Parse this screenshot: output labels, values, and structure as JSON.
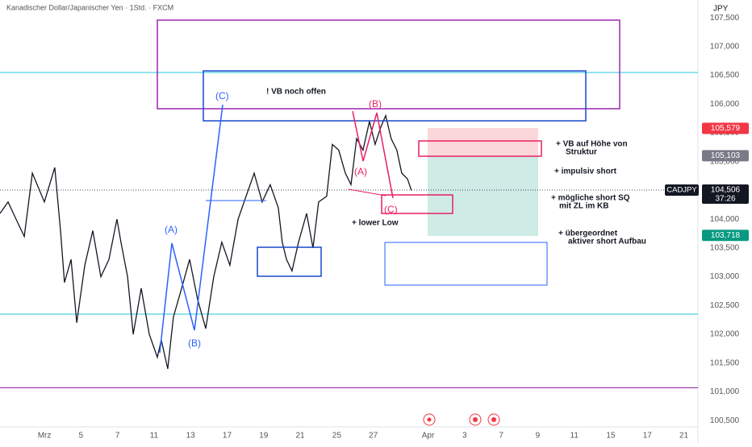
{
  "chart_data": {
    "type": "line",
    "title": "Kanadischer Dollar/Japanischer Yen · 1Std. · FXCM",
    "currency": "JPY",
    "symbol": "CADJPY",
    "countdown": "37:26",
    "x": [
      -2.43,
      -1.99,
      -1.55,
      -1.1,
      -0.66,
      0,
      0.57,
      0.88,
      1.1,
      1.46,
      1.77,
      2.21,
      2.65,
      3.09,
      3.53,
      3.97,
      4.19,
      4.55,
      4.86,
      5.3,
      5.74,
      6.18,
      6.4,
      6.75,
      7.06,
      7.51,
      7.95,
      8.39,
      8.83,
      9.27,
      9.71,
      10.15,
      10.6,
      11.04,
      11.48,
      11.92,
      12.36,
      12.8,
      13.02,
      13.25,
      13.55,
      13.91,
      14.35,
      14.7,
      15.01,
      15.45,
      15.76,
      16.11,
      16.47,
      16.78,
      17.09,
      17.44,
      17.79,
      18.1,
      18.41,
      18.68,
      18.98,
      19.29,
      19.56,
      19.87,
      20.09
    ],
    "series": [
      {
        "name": "CADJPY",
        "color": "#131722",
        "values": [
          104.1,
          104.3,
          104.0,
          103.7,
          104.8,
          104.3,
          104.9,
          103.8,
          102.9,
          103.3,
          102.2,
          103.2,
          103.8,
          103.0,
          103.3,
          104.0,
          103.6,
          103.0,
          102.0,
          102.8,
          102.0,
          101.6,
          101.9,
          101.4,
          102.3,
          102.8,
          103.3,
          102.6,
          102.1,
          103.0,
          103.6,
          103.2,
          104.0,
          104.4,
          104.8,
          104.3,
          104.6,
          104.2,
          103.6,
          103.3,
          103.1,
          103.6,
          104.1,
          103.5,
          104.3,
          104.4,
          105.3,
          105.2,
          104.8,
          104.6,
          105.4,
          105.2,
          105.7,
          105.3,
          105.6,
          105.8,
          105.4,
          105.2,
          104.8,
          104.7,
          104.5
        ]
      }
    ],
    "xlim": [
      -2.43,
      35.77
    ],
    "ylim": [
      100.39,
      107.81
    ],
    "xticks": [
      {
        "value": 0,
        "label": "Mrz"
      },
      {
        "value": 2,
        "label": "5"
      },
      {
        "value": 4,
        "label": "7"
      },
      {
        "value": 6,
        "label": "11"
      },
      {
        "value": 8,
        "label": "13"
      },
      {
        "value": 10,
        "label": "17"
      },
      {
        "value": 12,
        "label": "19"
      },
      {
        "value": 14,
        "label": "21"
      },
      {
        "value": 16,
        "label": "25"
      },
      {
        "value": 18,
        "label": "27"
      },
      {
        "value": 21,
        "label": "Apr"
      },
      {
        "value": 23,
        "label": "3"
      },
      {
        "value": 25,
        "label": "7"
      },
      {
        "value": 27,
        "label": "9"
      },
      {
        "value": 29,
        "label": "11"
      },
      {
        "value": 31,
        "label": "15"
      },
      {
        "value": 33,
        "label": "17"
      },
      {
        "value": 35,
        "label": "21"
      }
    ],
    "yticks": [
      {
        "value": 100.5,
        "label": "100,500"
      },
      {
        "value": 101,
        "label": "101,000"
      },
      {
        "value": 101.5,
        "label": "101,500"
      },
      {
        "value": 102,
        "label": "102,000"
      },
      {
        "value": 102.5,
        "label": "102,500"
      },
      {
        "value": 103,
        "label": "103,000"
      },
      {
        "value": 103.5,
        "label": "103,500"
      },
      {
        "value": 104,
        "label": "104,000"
      },
      {
        "value": 104.5,
        "label": "104,500"
      },
      {
        "value": 105,
        "label": "105,000"
      },
      {
        "value": 105.5,
        "label": "105,500"
      },
      {
        "value": 106,
        "label": "106,000"
      },
      {
        "value": 106.5,
        "label": "106,500"
      },
      {
        "value": 107,
        "label": "107,000"
      },
      {
        "value": 107.5,
        "label": "107,500"
      }
    ],
    "hlines": [
      {
        "value": 106.55,
        "color": "#4dd0e1"
      },
      {
        "value": 102.35,
        "color": "#4dd0e1"
      },
      {
        "value": 101.07,
        "color": "#9c27b0"
      }
    ],
    "price_tags": [
      {
        "value": 105.579,
        "label": "105,579",
        "color": "#f23645"
      },
      {
        "value": 105.103,
        "label": "105,103",
        "color": "#787b86"
      },
      {
        "value": 104.506,
        "label": "104,506",
        "color": "#131722"
      },
      {
        "value": 103.718,
        "label": "103,718",
        "color": "#089981"
      }
    ],
    "annotations": [
      "! VB noch offen",
      "(A)",
      "(B)",
      "(C)",
      "(B)",
      "(A)",
      "(C)",
      "+ VB auf Höhe von",
      "Struktur",
      "+ impulsiv short",
      "+ mögliche short SQ",
      "mit ZL im KB",
      "+ lower Low",
      "+ übergeordnet",
      "aktiver short Aufbau"
    ]
  }
}
